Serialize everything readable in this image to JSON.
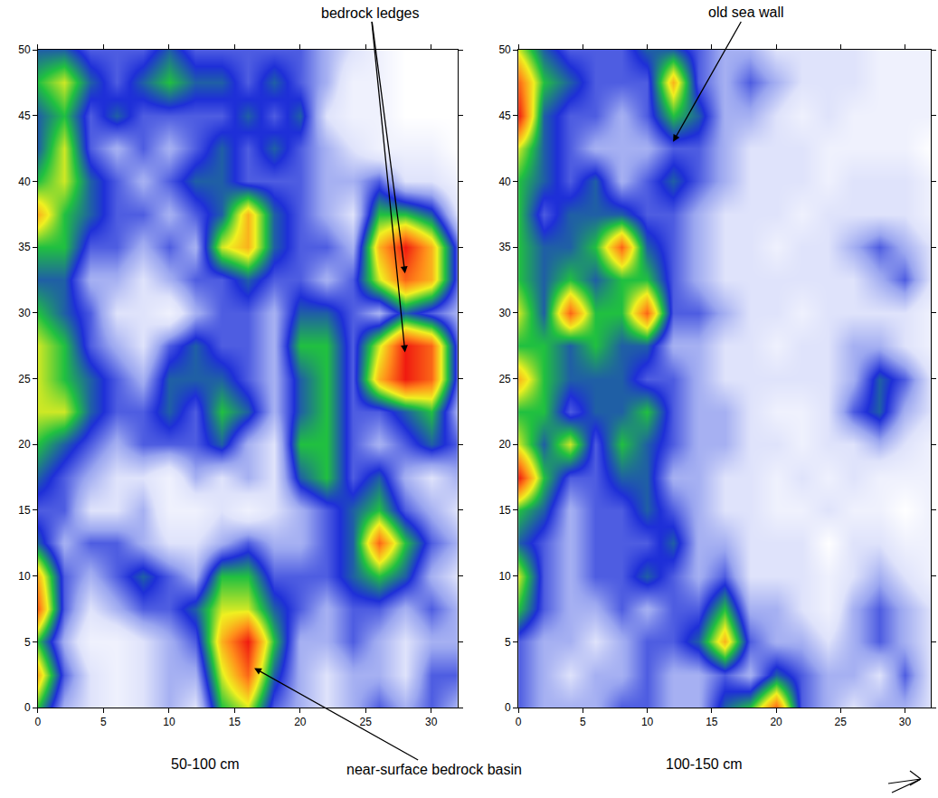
{
  "chart_data": [
    {
      "type": "heatmap",
      "title": "50-100 cm",
      "x": [
        0,
        2,
        4,
        6,
        8,
        10,
        12,
        14,
        16,
        18,
        20,
        22,
        24,
        26,
        28,
        30,
        32
      ],
      "y": [
        0,
        2.5,
        5,
        7.5,
        10,
        12.5,
        15,
        17.5,
        20,
        22.5,
        25,
        27.5,
        30,
        32.5,
        35,
        37.5,
        40,
        42.5,
        45,
        47.5,
        50
      ],
      "xlim": [
        0,
        32
      ],
      "ylim": [
        0,
        50
      ],
      "xticks": [
        0,
        5,
        10,
        15,
        20,
        25,
        30
      ],
      "yticks": [
        0,
        5,
        10,
        15,
        20,
        25,
        30,
        35,
        40,
        45,
        50
      ],
      "grid": false,
      "annotations": [
        {
          "text": "bedrock ledges",
          "points": [
            [
              28,
              33
            ],
            [
              28,
              27
            ]
          ]
        },
        {
          "text": "near-surface bedrock basin",
          "points": [
            [
              16.5,
              3
            ]
          ]
        }
      ],
      "z": [
        [
          6,
          3,
          2,
          1,
          2,
          3,
          2,
          6,
          7,
          4,
          3,
          2,
          3,
          4,
          3,
          4,
          3
        ],
        [
          8,
          4,
          2,
          1,
          2,
          3,
          3,
          7,
          9,
          5,
          3,
          2,
          3,
          3,
          2,
          4,
          4
        ],
        [
          6,
          3,
          1,
          1,
          2,
          3,
          4,
          8,
          10,
          6,
          3,
          3,
          4,
          3,
          2,
          3,
          3
        ],
        [
          9,
          4,
          2,
          3,
          4,
          4,
          5,
          7,
          7,
          5,
          4,
          3,
          4,
          4,
          3,
          4,
          3
        ],
        [
          8,
          4,
          3,
          4,
          5,
          4,
          3,
          6,
          6,
          4,
          4,
          4,
          5,
          6,
          5,
          3,
          2
        ],
        [
          5,
          3,
          4,
          4,
          3,
          2,
          2,
          3,
          4,
          3,
          3,
          4,
          5,
          9,
          6,
          4,
          3
        ],
        [
          4,
          4,
          2,
          2,
          3,
          1,
          1,
          2,
          1,
          2,
          3,
          4,
          5,
          6,
          4,
          3,
          2
        ],
        [
          5,
          4,
          3,
          2,
          2,
          1,
          3,
          2,
          3,
          2,
          5,
          6,
          4,
          5,
          3,
          2,
          3
        ],
        [
          6,
          5,
          4,
          3,
          4,
          4,
          4,
          5,
          3,
          2,
          6,
          6,
          4,
          3,
          4,
          5,
          4
        ],
        [
          7,
          7,
          5,
          4,
          4,
          5,
          4,
          6,
          5,
          3,
          5,
          6,
          4,
          4,
          5,
          6,
          3
        ],
        [
          7,
          6,
          5,
          4,
          3,
          5,
          5,
          5,
          4,
          3,
          5,
          6,
          4,
          8,
          10,
          9,
          4
        ],
        [
          7,
          6,
          4,
          3,
          2,
          4,
          5,
          4,
          4,
          3,
          6,
          6,
          4,
          7,
          10,
          9,
          4
        ],
        [
          6,
          5,
          4,
          2,
          2,
          1,
          3,
          4,
          4,
          3,
          5,
          5,
          4,
          3,
          5,
          4,
          3
        ],
        [
          5,
          5,
          3,
          3,
          2,
          3,
          4,
          4,
          5,
          4,
          4,
          3,
          4,
          7,
          9,
          8,
          4
        ],
        [
          6,
          6,
          4,
          4,
          3,
          4,
          3,
          7,
          8,
          5,
          4,
          4,
          3,
          8,
          10,
          8,
          4
        ],
        [
          8,
          6,
          5,
          4,
          4,
          3,
          4,
          5,
          8,
          5,
          4,
          3,
          2,
          6,
          6,
          5,
          2
        ],
        [
          6,
          7,
          5,
          4,
          3,
          4,
          5,
          5,
          4,
          4,
          4,
          3,
          3,
          4,
          2,
          2,
          1
        ],
        [
          5,
          7,
          4,
          3,
          4,
          3,
          4,
          5,
          4,
          5,
          4,
          3,
          2,
          1,
          1,
          1,
          0
        ],
        [
          5,
          6,
          4,
          5,
          4,
          4,
          4,
          4,
          5,
          4,
          5,
          2,
          1,
          1,
          0,
          0,
          0
        ],
        [
          6,
          7,
          5,
          4,
          5,
          6,
          5,
          5,
          4,
          5,
          4,
          3,
          1,
          1,
          0,
          0,
          0
        ],
        [
          5,
          5,
          4,
          4,
          4,
          5,
          4,
          4,
          4,
          4,
          4,
          3,
          2,
          1,
          0,
          0,
          0
        ]
      ]
    },
    {
      "type": "heatmap",
      "title": "100-150 cm",
      "x": [
        0,
        2,
        4,
        6,
        8,
        10,
        12,
        14,
        16,
        18,
        20,
        22,
        24,
        26,
        28,
        30,
        32
      ],
      "y": [
        0,
        2.5,
        5,
        7.5,
        10,
        12.5,
        15,
        17.5,
        20,
        22.5,
        25,
        27.5,
        30,
        32.5,
        35,
        37.5,
        40,
        42.5,
        45,
        47.5,
        50
      ],
      "xlim": [
        0,
        32
      ],
      "ylim": [
        0,
        50
      ],
      "xticks": [
        0,
        5,
        10,
        15,
        20,
        25,
        30
      ],
      "yticks": [
        0,
        5,
        10,
        15,
        20,
        25,
        30,
        35,
        40,
        45,
        50
      ],
      "grid": false,
      "annotations": [
        {
          "text": "old sea wall",
          "points": [
            [
              12,
              43
            ]
          ]
        }
      ],
      "z": [
        [
          4,
          3,
          3,
          3,
          4,
          4,
          3,
          3,
          5,
          6,
          9,
          4,
          3,
          2,
          3,
          3,
          2
        ],
        [
          4,
          3,
          2,
          3,
          3,
          4,
          3,
          3,
          4,
          3,
          5,
          4,
          3,
          3,
          2,
          4,
          2
        ],
        [
          4,
          3,
          3,
          2,
          3,
          4,
          4,
          5,
          8,
          4,
          3,
          3,
          2,
          3,
          4,
          3,
          2
        ],
        [
          6,
          4,
          3,
          3,
          4,
          3,
          4,
          4,
          6,
          3,
          3,
          2,
          1,
          3,
          4,
          3,
          2
        ],
        [
          7,
          4,
          3,
          4,
          4,
          5,
          4,
          3,
          4,
          2,
          2,
          2,
          1,
          2,
          3,
          2,
          1
        ],
        [
          5,
          4,
          3,
          4,
          4,
          4,
          5,
          3,
          3,
          2,
          2,
          2,
          0,
          2,
          2,
          1,
          1
        ],
        [
          6,
          5,
          3,
          4,
          4,
          5,
          4,
          3,
          2,
          2,
          1,
          1,
          2,
          1,
          1,
          0,
          1
        ],
        [
          10,
          6,
          4,
          4,
          5,
          5,
          3,
          3,
          2,
          2,
          1,
          2,
          1,
          2,
          1,
          1,
          1
        ],
        [
          7,
          5,
          7,
          4,
          6,
          5,
          4,
          3,
          3,
          2,
          2,
          1,
          2,
          2,
          3,
          2,
          1
        ],
        [
          6,
          6,
          4,
          5,
          5,
          6,
          4,
          3,
          3,
          2,
          1,
          1,
          2,
          4,
          5,
          3,
          2
        ],
        [
          8,
          6,
          5,
          5,
          5,
          4,
          4,
          3,
          2,
          2,
          2,
          2,
          2,
          3,
          5,
          4,
          2
        ],
        [
          6,
          6,
          5,
          6,
          5,
          5,
          3,
          3,
          2,
          2,
          1,
          2,
          2,
          3,
          3,
          2,
          1
        ],
        [
          7,
          5,
          9,
          6,
          6,
          9,
          4,
          4,
          3,
          2,
          2,
          1,
          2,
          2,
          2,
          2,
          1
        ],
        [
          6,
          5,
          6,
          5,
          6,
          6,
          4,
          3,
          2,
          2,
          2,
          2,
          2,
          2,
          3,
          4,
          2
        ],
        [
          6,
          5,
          5,
          6,
          9,
          5,
          4,
          3,
          2,
          2,
          1,
          2,
          2,
          3,
          4,
          3,
          2
        ],
        [
          6,
          4,
          5,
          5,
          5,
          4,
          4,
          3,
          2,
          2,
          2,
          1,
          2,
          2,
          2,
          2,
          1
        ],
        [
          6,
          5,
          4,
          5,
          3,
          4,
          5,
          4,
          3,
          2,
          2,
          2,
          1,
          2,
          2,
          2,
          1
        ],
        [
          7,
          5,
          4,
          3,
          3,
          3,
          4,
          4,
          3,
          2,
          2,
          2,
          1,
          1,
          1,
          1,
          0
        ],
        [
          10,
          5,
          4,
          4,
          3,
          4,
          6,
          5,
          3,
          3,
          2,
          1,
          2,
          1,
          1,
          1,
          1
        ],
        [
          9,
          6,
          5,
          4,
          4,
          4,
          8,
          4,
          3,
          4,
          3,
          2,
          2,
          2,
          1,
          1,
          1
        ],
        [
          7,
          5,
          4,
          4,
          4,
          5,
          5,
          4,
          3,
          3,
          2,
          2,
          2,
          2,
          1,
          1,
          1
        ]
      ]
    }
  ]
}
